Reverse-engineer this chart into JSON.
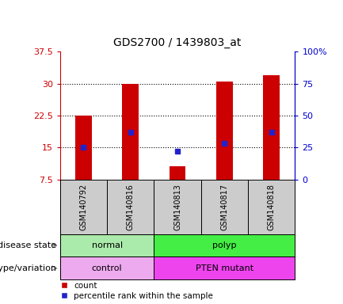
{
  "title": "GDS2700 / 1439803_at",
  "samples": [
    "GSM140792",
    "GSM140816",
    "GSM140813",
    "GSM140817",
    "GSM140818"
  ],
  "counts": [
    22.5,
    30.0,
    10.5,
    30.5,
    32.0
  ],
  "percentiles": [
    25.0,
    37.0,
    22.0,
    28.0,
    37.0
  ],
  "ymin": 7.5,
  "ymax": 37.5,
  "yticks": [
    7.5,
    15.0,
    22.5,
    30.0,
    37.5
  ],
  "ytick_labels": [
    "7.5",
    "15",
    "22.5",
    "30",
    "37.5"
  ],
  "right_yticks": [
    0,
    25,
    50,
    75,
    100
  ],
  "right_ytick_labels": [
    "0",
    "25",
    "50",
    "75",
    "100%"
  ],
  "bar_color": "#CC0000",
  "dot_color": "#2222CC",
  "bar_width": 0.35,
  "disease_state_groups": [
    {
      "label": "normal",
      "samples": [
        "GSM140792",
        "GSM140816"
      ],
      "color": "#AAEAAA"
    },
    {
      "label": "polyp",
      "samples": [
        "GSM140813",
        "GSM140817",
        "GSM140818"
      ],
      "color": "#44EE44"
    }
  ],
  "genotype_groups": [
    {
      "label": "control",
      "samples": [
        "GSM140792",
        "GSM140816"
      ],
      "color": "#EEAAEE"
    },
    {
      "label": "PTEN mutant",
      "samples": [
        "GSM140813",
        "GSM140817",
        "GSM140818"
      ],
      "color": "#EE44EE"
    }
  ],
  "left_axis_color": "#CC0000",
  "right_axis_color": "#0000CC",
  "tick_label_area_color": "#CCCCCC",
  "grid_dotted_ticks": [
    15.0,
    22.5,
    30.0
  ],
  "row_label_disease": "disease state",
  "row_label_geno": "genotype/variation",
  "legend_count": "count",
  "legend_pct": "percentile rank within the sample"
}
